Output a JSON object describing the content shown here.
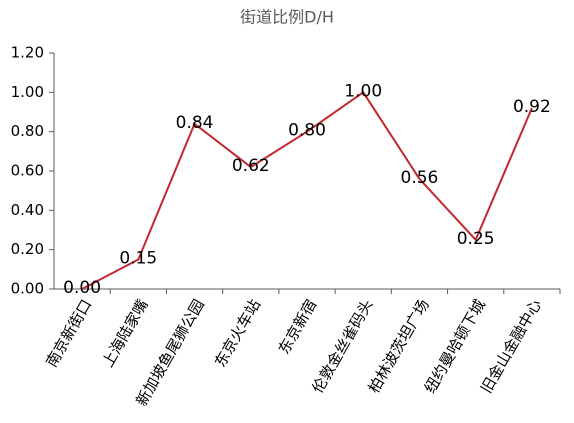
{
  "chart_data": {
    "type": "line",
    "title": "街道比例D/H",
    "categories": [
      "南京新街口",
      "上海陆家嘴",
      "新加坡鱼尾狮公园",
      "东京火车站",
      "东京新宿",
      "伦敦金丝雀码头",
      "柏林波茨坦广场",
      "纽约曼哈顿下城",
      "旧金山金融中心"
    ],
    "series": [
      {
        "name": "街道比例D/H",
        "color": "#c0282d",
        "values": [
          0,
          0.15,
          0.84,
          0.62,
          0.8,
          1,
          0.56,
          0.25,
          0.92
        ],
        "value_labels": [
          "0.00",
          "0.15",
          "0.84",
          "0.62",
          "0.80",
          "1.00",
          "0.56",
          "0.25",
          "0.92"
        ]
      }
    ],
    "ylim": [
      0,
      1.2
    ],
    "yticks": [
      {
        "value": 0,
        "label": "0.00"
      },
      {
        "value": 0.2,
        "label": "0.20"
      },
      {
        "value": 0.4,
        "label": "0.40"
      },
      {
        "value": 0.6,
        "label": "0.60"
      },
      {
        "value": 0.8,
        "label": "0.80"
      },
      {
        "value": 1,
        "label": "1.00"
      },
      {
        "value": 1.2,
        "label": "1.20"
      }
    ],
    "grid": false
  }
}
